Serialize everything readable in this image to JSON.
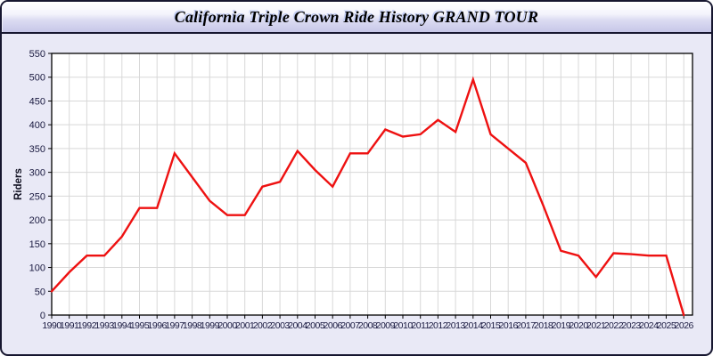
{
  "window": {
    "background": "#e9e9f6",
    "border_color": "#16162f"
  },
  "header": {
    "title": "California Triple Crown Ride History GRAND TOUR",
    "gradient_top": "#ffffff",
    "gradient_bottom": "#c7c7e8"
  },
  "chart_data": {
    "type": "line",
    "title": "California Triple Crown Ride History GRAND TOUR",
    "xlabel": "",
    "ylabel": "Riders",
    "ylim": [
      0,
      550
    ],
    "ytick_step": 50,
    "grid": true,
    "legend_position": "none",
    "plot_bg": "#ffffff",
    "grid_color": "#d8d8d8",
    "axis_color": "#000000",
    "tick_label_color": "#1a1a40",
    "line_color": "#ee1111",
    "categories": [
      "1990",
      "1991",
      "1992",
      "1993",
      "1994",
      "1995",
      "1996",
      "1997",
      "1998",
      "1999",
      "2000",
      "2001",
      "2002",
      "2003",
      "2004",
      "2005",
      "2006",
      "2007",
      "2008",
      "2009",
      "2010",
      "2011",
      "2012",
      "2013",
      "2014",
      "2015",
      "2016",
      "2017",
      "2018",
      "2019",
      "2020",
      "2021",
      "2022",
      "2023",
      "2024",
      "2025",
      "2026"
    ],
    "series": [
      {
        "name": "Riders",
        "values": [
          50,
          90,
          125,
          125,
          165,
          225,
          225,
          340,
          290,
          240,
          210,
          210,
          270,
          280,
          345,
          305,
          270,
          340,
          340,
          390,
          375,
          380,
          410,
          385,
          495,
          380,
          350,
          320,
          230,
          135,
          125,
          80,
          130,
          128,
          125,
          125,
          0
        ]
      }
    ]
  }
}
